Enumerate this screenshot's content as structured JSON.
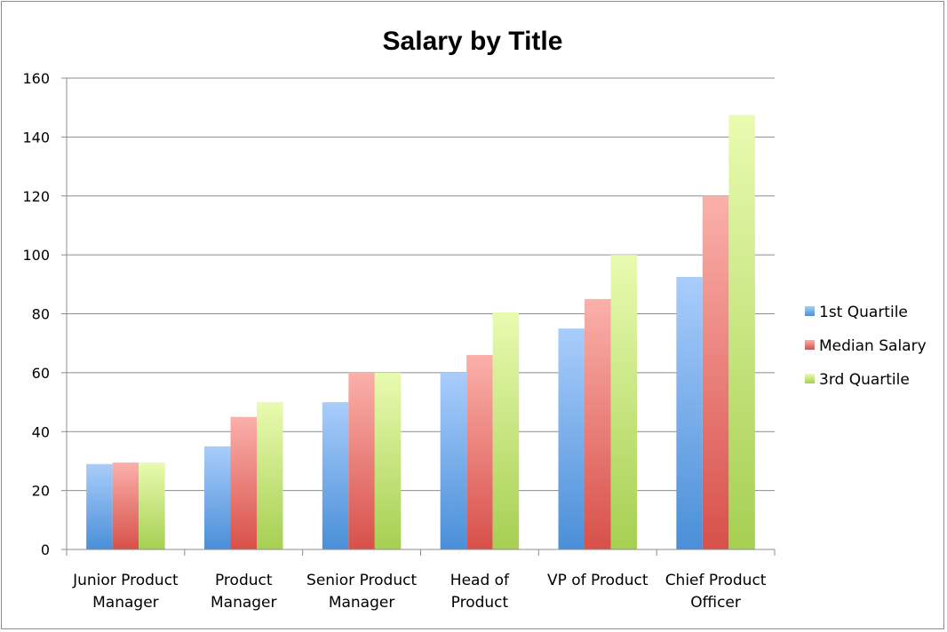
{
  "chart_data": {
    "type": "bar",
    "title": "Salary by Title",
    "xlabel": "",
    "ylabel": "",
    "ylim": [
      0,
      160
    ],
    "yticks": [
      0,
      20,
      40,
      60,
      80,
      100,
      120,
      140,
      160
    ],
    "grid": true,
    "legend_position": "right",
    "categories": [
      [
        "Junior Product",
        "Manager"
      ],
      [
        "Product",
        "Manager"
      ],
      [
        "Senior Product",
        "Manager"
      ],
      [
        "Head of",
        "Product"
      ],
      [
        "VP of Product"
      ],
      [
        "Chief Product",
        "Officer"
      ]
    ],
    "series": [
      {
        "name": "1st Quartile",
        "values": [
          29,
          35,
          50,
          60,
          75,
          92.5
        ],
        "color_top": "#a9cdfb",
        "color_bottom": "#4a8fd8"
      },
      {
        "name": "Median Salary",
        "values": [
          29.5,
          45,
          60,
          66,
          85,
          120
        ],
        "color_top": "#fbb0aa",
        "color_bottom": "#d8504a"
      },
      {
        "name": "3rd Quartile",
        "values": [
          29.5,
          50,
          60,
          80.5,
          100,
          147.5
        ],
        "color_top": "#e9fbb0",
        "color_bottom": "#a6cf52"
      }
    ]
  }
}
